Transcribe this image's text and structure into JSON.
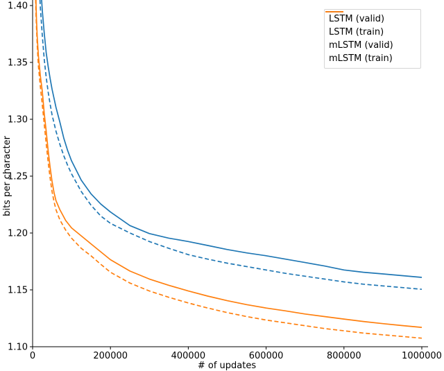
{
  "chart_data": {
    "type": "line",
    "title": "",
    "xlabel": "# of updates",
    "ylabel": "bits per character",
    "xlim": [
      0,
      1000000
    ],
    "ylim": [
      1.1,
      1.4
    ],
    "grid": false,
    "legend_position": "upper right",
    "x_ticks": [
      0,
      200000,
      400000,
      600000,
      800000,
      1000000
    ],
    "x_tick_labels": [
      "0",
      "200000",
      "400000",
      "600000",
      "800000",
      "1000000"
    ],
    "y_ticks": [
      1.1,
      1.15,
      1.2,
      1.25,
      1.3,
      1.35,
      1.4
    ],
    "y_tick_labels": [
      "1.10",
      "1.15",
      "1.20",
      "1.25",
      "1.30",
      "1.35",
      "1.40"
    ],
    "colors": {
      "lstm": "#1f77b4",
      "mlstm": "#ff7f0e"
    },
    "series": [
      {
        "name": "LSTM (valid)",
        "color": "#1f77b4",
        "line_style": "solid",
        "points": [
          [
            11000,
            1.515
          ],
          [
            13000,
            1.49
          ],
          [
            16000,
            1.452
          ],
          [
            20000,
            1.4215
          ],
          [
            25000,
            1.3955
          ],
          [
            30000,
            1.3755
          ],
          [
            35000,
            1.3585
          ],
          [
            40000,
            1.3465
          ],
          [
            45000,
            1.336
          ],
          [
            50000,
            1.3265
          ],
          [
            60000,
            1.3105
          ],
          [
            70000,
            1.2975
          ],
          [
            80000,
            1.2835
          ],
          [
            90000,
            1.2725
          ],
          [
            100000,
            1.2635
          ],
          [
            125000,
            1.2465
          ],
          [
            150000,
            1.2345
          ],
          [
            175000,
            1.2255
          ],
          [
            200000,
            1.2185
          ],
          [
            250000,
            1.2065
          ],
          [
            300000,
            1.1995
          ],
          [
            350000,
            1.1955
          ],
          [
            400000,
            1.1925
          ],
          [
            450000,
            1.189
          ],
          [
            500000,
            1.1855
          ],
          [
            550000,
            1.1825
          ],
          [
            600000,
            1.18
          ],
          [
            650000,
            1.177
          ],
          [
            700000,
            1.174
          ],
          [
            750000,
            1.171
          ],
          [
            800000,
            1.1675
          ],
          [
            850000,
            1.1655
          ],
          [
            900000,
            1.164
          ],
          [
            950000,
            1.1625
          ],
          [
            1000000,
            1.161
          ]
        ]
      },
      {
        "name": "LSTM (train)",
        "color": "#1f77b4",
        "line_style": "dashed",
        "points": [
          [
            9000,
            1.515
          ],
          [
            10000,
            1.5
          ],
          [
            13000,
            1.4545
          ],
          [
            16000,
            1.4245
          ],
          [
            20000,
            1.398
          ],
          [
            25000,
            1.3735
          ],
          [
            30000,
            1.3525
          ],
          [
            35000,
            1.337
          ],
          [
            40000,
            1.324
          ],
          [
            45000,
            1.3135
          ],
          [
            50000,
            1.304
          ],
          [
            60000,
            1.2895
          ],
          [
            70000,
            1.278
          ],
          [
            80000,
            1.268
          ],
          [
            90000,
            1.2595
          ],
          [
            100000,
            1.252
          ],
          [
            125000,
            1.2365
          ],
          [
            150000,
            1.2245
          ],
          [
            175000,
            1.215
          ],
          [
            200000,
            1.2085
          ],
          [
            250000,
            1.2
          ],
          [
            300000,
            1.1925
          ],
          [
            350000,
            1.1865
          ],
          [
            400000,
            1.181
          ],
          [
            450000,
            1.177
          ],
          [
            500000,
            1.1735
          ],
          [
            550000,
            1.1705
          ],
          [
            600000,
            1.1675
          ],
          [
            650000,
            1.1645
          ],
          [
            700000,
            1.162
          ],
          [
            750000,
            1.1595
          ],
          [
            800000,
            1.157
          ],
          [
            850000,
            1.155
          ],
          [
            900000,
            1.1535
          ],
          [
            950000,
            1.152
          ],
          [
            1000000,
            1.1505
          ]
        ]
      },
      {
        "name": "mLSTM (valid)",
        "color": "#ff7f0e",
        "line_style": "solid",
        "points": [
          [
            7000,
            1.44
          ],
          [
            8000,
            1.418
          ],
          [
            9000,
            1.4
          ],
          [
            10000,
            1.3875
          ],
          [
            12000,
            1.372
          ],
          [
            15000,
            1.3555
          ],
          [
            20000,
            1.338
          ],
          [
            25000,
            1.3245
          ],
          [
            30000,
            1.305
          ],
          [
            35000,
            1.2895
          ],
          [
            40000,
            1.2725
          ],
          [
            45000,
            1.258
          ],
          [
            50000,
            1.2455
          ],
          [
            55000,
            1.2355
          ],
          [
            60000,
            1.2285
          ],
          [
            70000,
            1.2205
          ],
          [
            85000,
            1.211
          ],
          [
            100000,
            1.2045
          ],
          [
            125000,
            1.1975
          ],
          [
            150000,
            1.1905
          ],
          [
            175000,
            1.1835
          ],
          [
            200000,
            1.1765
          ],
          [
            250000,
            1.1665
          ],
          [
            300000,
            1.1595
          ],
          [
            350000,
            1.154
          ],
          [
            400000,
            1.149
          ],
          [
            450000,
            1.1445
          ],
          [
            500000,
            1.1405
          ],
          [
            550000,
            1.137
          ],
          [
            600000,
            1.134
          ],
          [
            650000,
            1.1315
          ],
          [
            700000,
            1.1288
          ],
          [
            750000,
            1.1265
          ],
          [
            800000,
            1.1243
          ],
          [
            850000,
            1.1222
          ],
          [
            900000,
            1.1203
          ],
          [
            950000,
            1.1186
          ],
          [
            1000000,
            1.117
          ]
        ]
      },
      {
        "name": "mLSTM (train)",
        "color": "#ff7f0e",
        "line_style": "dashed",
        "points": [
          [
            6000,
            1.44
          ],
          [
            7000,
            1.418
          ],
          [
            8000,
            1.402
          ],
          [
            9000,
            1.39
          ],
          [
            10000,
            1.381
          ],
          [
            12000,
            1.3645
          ],
          [
            15000,
            1.3465
          ],
          [
            20000,
            1.3285
          ],
          [
            25000,
            1.3125
          ],
          [
            30000,
            1.2955
          ],
          [
            35000,
            1.2785
          ],
          [
            40000,
            1.2625
          ],
          [
            45000,
            1.2485
          ],
          [
            50000,
            1.2365
          ],
          [
            55000,
            1.2275
          ],
          [
            60000,
            1.2205
          ],
          [
            70000,
            1.2115
          ],
          [
            85000,
            1.2025
          ],
          [
            100000,
            1.1955
          ],
          [
            125000,
            1.1865
          ],
          [
            150000,
            1.18
          ],
          [
            175000,
            1.1725
          ],
          [
            200000,
            1.1655
          ],
          [
            250000,
            1.156
          ],
          [
            300000,
            1.149
          ],
          [
            350000,
            1.1435
          ],
          [
            400000,
            1.1385
          ],
          [
            450000,
            1.134
          ],
          [
            500000,
            1.13
          ],
          [
            550000,
            1.1265
          ],
          [
            600000,
            1.1235
          ],
          [
            650000,
            1.121
          ],
          [
            700000,
            1.1185
          ],
          [
            750000,
            1.116
          ],
          [
            800000,
            1.114
          ],
          [
            850000,
            1.112
          ],
          [
            900000,
            1.1105
          ],
          [
            950000,
            1.109
          ],
          [
            1000000,
            1.1075
          ]
        ]
      }
    ]
  }
}
